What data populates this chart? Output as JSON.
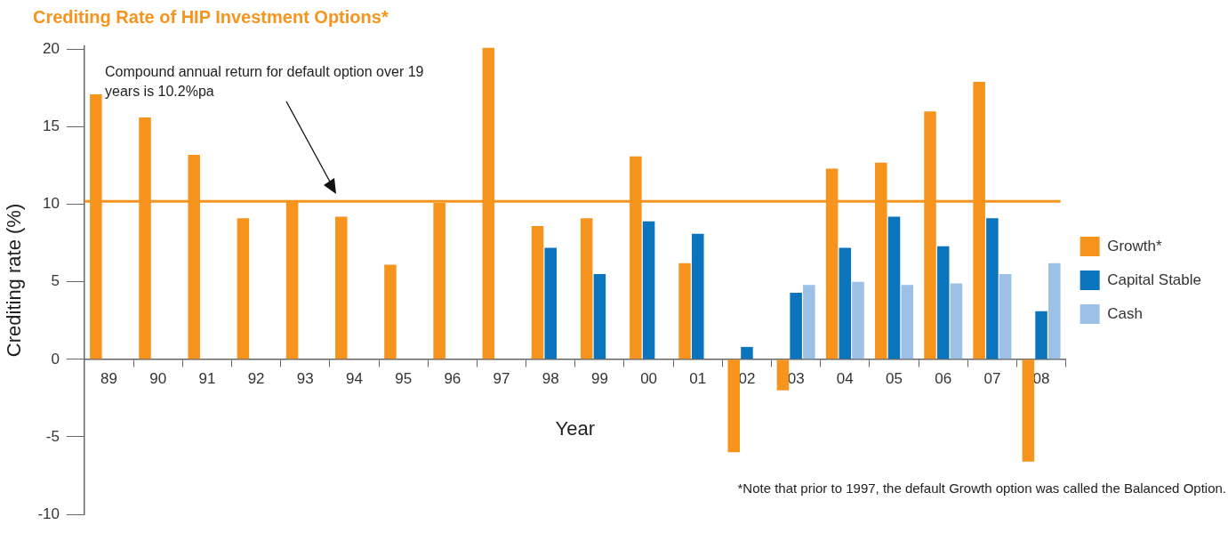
{
  "chart_data": {
    "type": "bar",
    "title": "Crediting Rate of HIP Investment Options*",
    "xlabel": "Year",
    "ylabel": "Crediting rate (%)",
    "categories": [
      "89",
      "90",
      "91",
      "92",
      "93",
      "94",
      "95",
      "96",
      "97",
      "98",
      "99",
      "00",
      "01",
      "02",
      "03",
      "04",
      "05",
      "06",
      "07",
      "08"
    ],
    "series": [
      {
        "name": "Growth*",
        "color": "#f7941d",
        "values": [
          17.1,
          15.6,
          13.2,
          9.1,
          10.2,
          9.2,
          6.1,
          10.1,
          20.1,
          8.6,
          9.1,
          13.1,
          6.2,
          -6.0,
          -2.0,
          12.3,
          12.7,
          16.0,
          17.9,
          -6.6
        ]
      },
      {
        "name": "Capital Stable",
        "color": "#0a74bc",
        "values": [
          null,
          null,
          null,
          null,
          null,
          null,
          null,
          null,
          null,
          7.2,
          5.5,
          8.9,
          8.1,
          0.8,
          4.3,
          7.2,
          9.2,
          7.3,
          9.1,
          3.1
        ]
      },
      {
        "name": "Cash",
        "color": "#9dc0e6",
        "values": [
          null,
          null,
          null,
          null,
          null,
          null,
          null,
          null,
          null,
          null,
          null,
          null,
          null,
          null,
          4.8,
          5.0,
          4.8,
          4.9,
          5.5,
          6.2
        ]
      }
    ],
    "ylim": [
      -10,
      20.2
    ],
    "yticks": [
      -10,
      -5,
      0,
      5,
      10,
      15,
      20
    ],
    "grid": false,
    "legend": "right",
    "ref_lines": [
      {
        "axis": "y",
        "value": 10.2,
        "color": "#f7941d"
      }
    ],
    "annotations": [
      "Compound annual return for default option over 19 years is 10.2%pa",
      "*Note that prior to 1997, the default Growth option was called the Balanced Option."
    ]
  }
}
